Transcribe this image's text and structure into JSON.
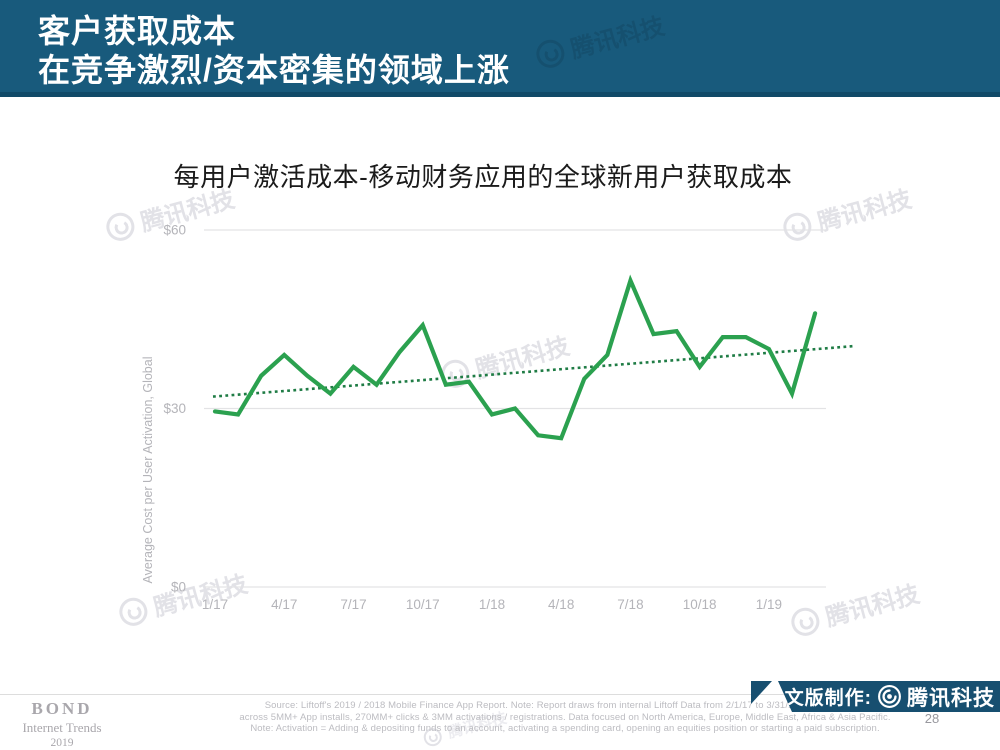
{
  "header": {
    "title_line1": "客户获取成本",
    "title_line2": "在竞争激烈/资本密集的领域上涨"
  },
  "chart": {
    "title": "每用户激活成本-移动财务应用的全球新用户获取成本",
    "chart_data": {
      "type": "line",
      "title": "每用户激活成本-移动财务应用的全球新用户获取成本",
      "xlabel": "",
      "ylabel": "Average Cost per User Activation, Global",
      "ylim": [
        0,
        60
      ],
      "grid": "horizontal",
      "y_ticks": [
        {
          "value": 60,
          "label": "$60"
        },
        {
          "value": 30,
          "label": "$30"
        },
        {
          "value": 0,
          "label": "$0"
        }
      ],
      "x": [
        "1/17",
        "2/17",
        "3/17",
        "4/17",
        "5/17",
        "6/17",
        "7/17",
        "8/17",
        "9/17",
        "10/17",
        "11/17",
        "12/17",
        "1/18",
        "2/18",
        "3/18",
        "4/18",
        "5/18",
        "6/18",
        "7/18",
        "8/18",
        "9/18",
        "10/18",
        "11/18",
        "12/18",
        "1/19",
        "2/19",
        "3/19"
      ],
      "x_tick_labels": [
        "1/17",
        "4/17",
        "7/17",
        "10/17",
        "1/18",
        "4/18",
        "7/18",
        "10/18",
        "1/19"
      ],
      "series": [
        {
          "name": "Average cost per user activation ($)",
          "color": "#2ba14f",
          "values": [
            29.5,
            29,
            35.5,
            39,
            35.5,
            32.5,
            37,
            34,
            39.5,
            44,
            34,
            34.5,
            29,
            30,
            25.5,
            25,
            35,
            39,
            51.5,
            42.5,
            43,
            37,
            42,
            42,
            40,
            32.5,
            46
          ]
        }
      ],
      "trendline": {
        "style": "dotted",
        "color": "#1f7c45",
        "start_value": 32,
        "end_value": 40.5
      },
      "legend": "none"
    }
  },
  "watermark": {
    "text": "腾讯科技"
  },
  "footer": {
    "logo": {
      "line1": "BOND",
      "line2": "Internet Trends",
      "line3": "2019"
    },
    "source_lines": [
      "Source: Liftoff's 2019 / 2018 Mobile Finance App Report.  Note: Report draws from internal Liftoff Data from 2/1/17 to 3/31/19, spanning data",
      "across 5MM+ App installs, 270MM+ clicks & 3MM activations / registrations.  Data focused on North America, Europe, Middle East, Africa & Asia Pacific.",
      "Note: Activation =  Adding & depositing funds to an account, activating a spending card, opening an equities position or starting a paid subscription."
    ],
    "page_number": "28",
    "banner": {
      "label": "中文版制作:",
      "brand": "腾讯科技"
    }
  }
}
